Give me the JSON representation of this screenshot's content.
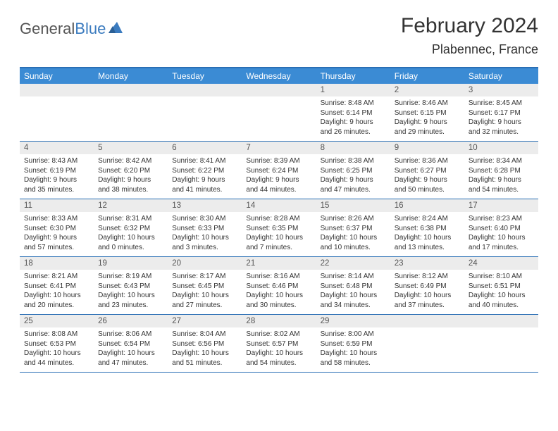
{
  "logo": {
    "textGray": "General",
    "textBlue": "Blue"
  },
  "title": "February 2024",
  "location": "Plabennec, France",
  "colors": {
    "headerBg": "#3b8bd4",
    "borderBlue": "#2a6fb5",
    "dayNumBg": "#ececec",
    "logoBlue": "#3b7bbf"
  },
  "dayNames": [
    "Sunday",
    "Monday",
    "Tuesday",
    "Wednesday",
    "Thursday",
    "Friday",
    "Saturday"
  ],
  "weeks": [
    [
      null,
      null,
      null,
      null,
      {
        "n": "1",
        "sr": "8:48 AM",
        "ss": "6:14 PM",
        "dl": "9 hours and 26 minutes."
      },
      {
        "n": "2",
        "sr": "8:46 AM",
        "ss": "6:15 PM",
        "dl": "9 hours and 29 minutes."
      },
      {
        "n": "3",
        "sr": "8:45 AM",
        "ss": "6:17 PM",
        "dl": "9 hours and 32 minutes."
      }
    ],
    [
      {
        "n": "4",
        "sr": "8:43 AM",
        "ss": "6:19 PM",
        "dl": "9 hours and 35 minutes."
      },
      {
        "n": "5",
        "sr": "8:42 AM",
        "ss": "6:20 PM",
        "dl": "9 hours and 38 minutes."
      },
      {
        "n": "6",
        "sr": "8:41 AM",
        "ss": "6:22 PM",
        "dl": "9 hours and 41 minutes."
      },
      {
        "n": "7",
        "sr": "8:39 AM",
        "ss": "6:24 PM",
        "dl": "9 hours and 44 minutes."
      },
      {
        "n": "8",
        "sr": "8:38 AM",
        "ss": "6:25 PM",
        "dl": "9 hours and 47 minutes."
      },
      {
        "n": "9",
        "sr": "8:36 AM",
        "ss": "6:27 PM",
        "dl": "9 hours and 50 minutes."
      },
      {
        "n": "10",
        "sr": "8:34 AM",
        "ss": "6:28 PM",
        "dl": "9 hours and 54 minutes."
      }
    ],
    [
      {
        "n": "11",
        "sr": "8:33 AM",
        "ss": "6:30 PM",
        "dl": "9 hours and 57 minutes."
      },
      {
        "n": "12",
        "sr": "8:31 AM",
        "ss": "6:32 PM",
        "dl": "10 hours and 0 minutes."
      },
      {
        "n": "13",
        "sr": "8:30 AM",
        "ss": "6:33 PM",
        "dl": "10 hours and 3 minutes."
      },
      {
        "n": "14",
        "sr": "8:28 AM",
        "ss": "6:35 PM",
        "dl": "10 hours and 7 minutes."
      },
      {
        "n": "15",
        "sr": "8:26 AM",
        "ss": "6:37 PM",
        "dl": "10 hours and 10 minutes."
      },
      {
        "n": "16",
        "sr": "8:24 AM",
        "ss": "6:38 PM",
        "dl": "10 hours and 13 minutes."
      },
      {
        "n": "17",
        "sr": "8:23 AM",
        "ss": "6:40 PM",
        "dl": "10 hours and 17 minutes."
      }
    ],
    [
      {
        "n": "18",
        "sr": "8:21 AM",
        "ss": "6:41 PM",
        "dl": "10 hours and 20 minutes."
      },
      {
        "n": "19",
        "sr": "8:19 AM",
        "ss": "6:43 PM",
        "dl": "10 hours and 23 minutes."
      },
      {
        "n": "20",
        "sr": "8:17 AM",
        "ss": "6:45 PM",
        "dl": "10 hours and 27 minutes."
      },
      {
        "n": "21",
        "sr": "8:16 AM",
        "ss": "6:46 PM",
        "dl": "10 hours and 30 minutes."
      },
      {
        "n": "22",
        "sr": "8:14 AM",
        "ss": "6:48 PM",
        "dl": "10 hours and 34 minutes."
      },
      {
        "n": "23",
        "sr": "8:12 AM",
        "ss": "6:49 PM",
        "dl": "10 hours and 37 minutes."
      },
      {
        "n": "24",
        "sr": "8:10 AM",
        "ss": "6:51 PM",
        "dl": "10 hours and 40 minutes."
      }
    ],
    [
      {
        "n": "25",
        "sr": "8:08 AM",
        "ss": "6:53 PM",
        "dl": "10 hours and 44 minutes."
      },
      {
        "n": "26",
        "sr": "8:06 AM",
        "ss": "6:54 PM",
        "dl": "10 hours and 47 minutes."
      },
      {
        "n": "27",
        "sr": "8:04 AM",
        "ss": "6:56 PM",
        "dl": "10 hours and 51 minutes."
      },
      {
        "n": "28",
        "sr": "8:02 AM",
        "ss": "6:57 PM",
        "dl": "10 hours and 54 minutes."
      },
      {
        "n": "29",
        "sr": "8:00 AM",
        "ss": "6:59 PM",
        "dl": "10 hours and 58 minutes."
      },
      null,
      null
    ]
  ],
  "labels": {
    "sunrise": "Sunrise:",
    "sunset": "Sunset:",
    "daylight": "Daylight:"
  }
}
